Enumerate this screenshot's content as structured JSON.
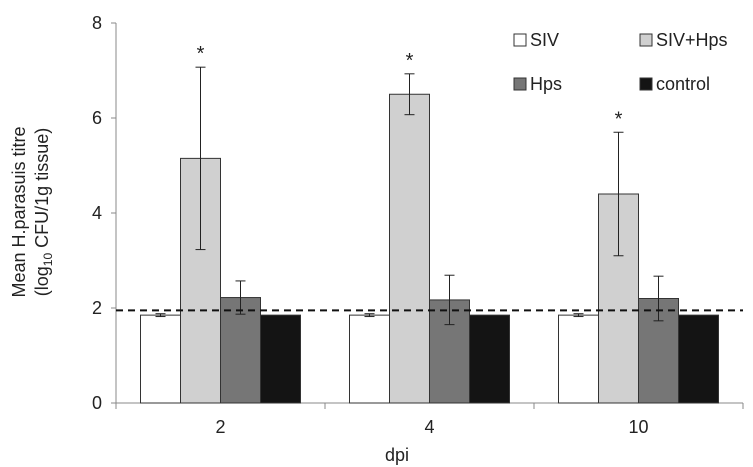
{
  "chart_data": {
    "type": "bar",
    "xlabel": "dpi",
    "ylabel_line1": "Mean H.parasuis titre",
    "ylabel_line2_prefix": "(log",
    "ylabel_line2_sub": "10",
    "ylabel_line2_suffix": " CFU/1g tissue)",
    "ylim": [
      0,
      8
    ],
    "yticks": [
      "0",
      "2",
      "4",
      "6",
      "8"
    ],
    "categories": [
      "2",
      "4",
      "10"
    ],
    "legend_placement": "top-right",
    "grid": false,
    "reference_line": 1.95,
    "series": [
      {
        "name": "SIV",
        "values": [
          1.85,
          1.85,
          1.85
        ],
        "errors": [
          0.03,
          0.03,
          0.03
        ],
        "color": "#ffffff"
      },
      {
        "name": "SIV+Hps",
        "values": [
          5.15,
          6.5,
          4.4
        ],
        "errors": [
          1.92,
          0.43,
          1.3
        ],
        "color": "#d0d0d0"
      },
      {
        "name": "Hps",
        "values": [
          2.22,
          2.17,
          2.2
        ],
        "errors": [
          0.35,
          0.52,
          0.47
        ],
        "color": "#767676"
      },
      {
        "name": "control",
        "values": [
          1.85,
          1.85,
          1.85
        ],
        "errors": [
          0.0,
          0.0,
          0.0
        ],
        "color": "#141414"
      }
    ],
    "annotations": [
      {
        "text": "*",
        "series": "SIV+Hps",
        "category": "2"
      },
      {
        "text": "*",
        "series": "SIV+Hps",
        "category": "4"
      },
      {
        "text": "*",
        "series": "SIV+Hps",
        "category": "10"
      }
    ]
  }
}
